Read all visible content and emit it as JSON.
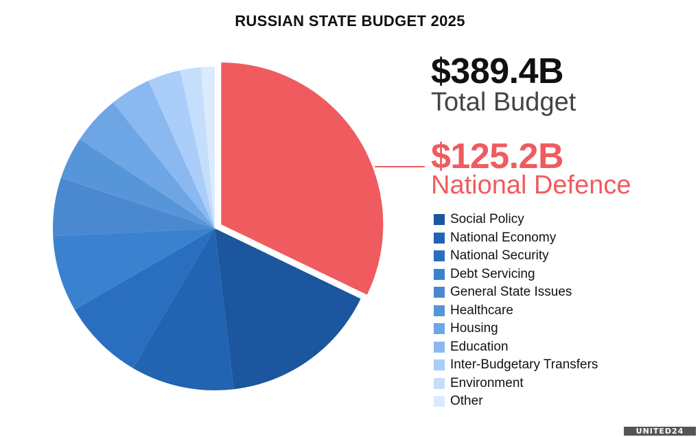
{
  "header": {
    "title": "RUSSIAN STATE BUDGET 2025"
  },
  "summary": {
    "total_value": "$389.4B",
    "total_label": "Total Budget",
    "highlight_value": "$125.2B",
    "highlight_label": "National Defence",
    "highlight_color": "#ef5b5f"
  },
  "legend": {
    "items": [
      {
        "label": "Social Policy",
        "color": "#1b569e"
      },
      {
        "label": "National Economy",
        "color": "#2264b1"
      },
      {
        "label": "National Security",
        "color": "#2a6fbf"
      },
      {
        "label": "Debt Servicing",
        "color": "#3a82d0"
      },
      {
        "label": "General State Issues",
        "color": "#4a89cf"
      },
      {
        "label": "Healthcare",
        "color": "#5795d9"
      },
      {
        "label": "Housing",
        "color": "#6ea5e5"
      },
      {
        "label": "Education",
        "color": "#8ab8f0"
      },
      {
        "label": "Inter-Budgetary Transfers",
        "color": "#abcdfa"
      },
      {
        "label": "Environment",
        "color": "#c5defc"
      },
      {
        "label": "Other",
        "color": "#dbeafd"
      }
    ]
  },
  "brand": {
    "label": "UNITED24"
  },
  "chart_data": {
    "type": "pie",
    "title": "RUSSIAN STATE BUDGET 2025",
    "total": 389.4,
    "unit": "USD billions",
    "exploded": "National Defence",
    "categories": [
      "National Defence",
      "Social Policy",
      "National Economy",
      "National Security",
      "Debt Servicing",
      "General State Issues",
      "Healthcare",
      "Housing",
      "Education",
      "Inter-Budgetary Transfers",
      "Environment",
      "Other"
    ],
    "values": [
      125.2,
      62.2,
      40.2,
      31.9,
      29.6,
      22.6,
      16.6,
      18.9,
      16.0,
      12.8,
      8.0,
      5.4
    ],
    "colors": [
      "#ef5b5f",
      "#1b569e",
      "#2264b1",
      "#2a6fbf",
      "#3a82d0",
      "#4a89cf",
      "#5795d9",
      "#6ea5e5",
      "#8ab8f0",
      "#abcdfa",
      "#c5defc",
      "#dbeafd"
    ],
    "legend_position": "right"
  }
}
